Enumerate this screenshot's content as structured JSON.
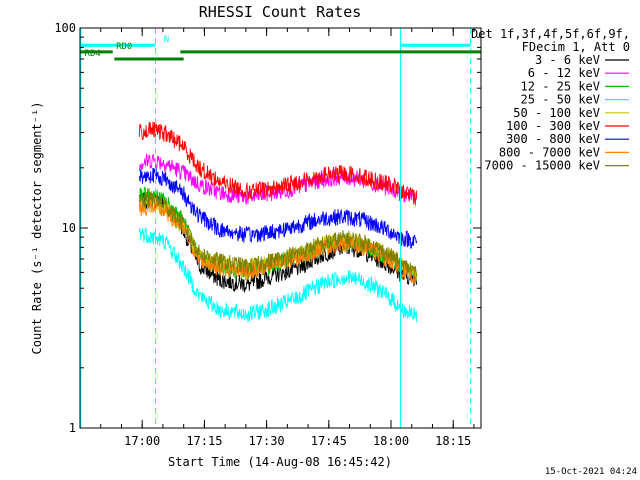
{
  "chart_data": {
    "type": "line",
    "title": "RHESSI Count Rates",
    "xlabel": "Start Time (14-Aug-08 16:45:42)",
    "ylabel": "Count Rate (s⁻¹ detector segment⁻¹)",
    "y_scale": "log",
    "ylim": [
      1,
      100
    ],
    "y_tick_labels": [
      "1",
      "10",
      "100"
    ],
    "x_range_minutes": [
      -0.7,
      96
    ],
    "x_ticks": [
      {
        "label": "17:00",
        "minutes": 14.3
      },
      {
        "label": "17:15",
        "minutes": 29.3
      },
      {
        "label": "17:30",
        "minutes": 44.3
      },
      {
        "label": "17:45",
        "minutes": 59.3
      },
      {
        "label": "18:00",
        "minutes": 74.3
      },
      {
        "label": "18:15",
        "minutes": 89.3
      }
    ],
    "legend_header": [
      "Det 1f,3f,4f,5f,6f,9f,",
      "FDecim 1, Att 0"
    ],
    "legend_position": "right",
    "series": [
      {
        "name": "3 - 6 keV",
        "color": "#000000",
        "points": [
          [
            13.6,
            13.5
          ],
          [
            17,
            14
          ],
          [
            20,
            13
          ],
          [
            24,
            10
          ],
          [
            28,
            6.5
          ],
          [
            33,
            5.5
          ],
          [
            40,
            5.2
          ],
          [
            46,
            5.8
          ],
          [
            52,
            6.3
          ],
          [
            58,
            7.4
          ],
          [
            63,
            8.0
          ],
          [
            67,
            7.8
          ],
          [
            71,
            7.0
          ],
          [
            75,
            6.3
          ],
          [
            77,
            5.8
          ],
          [
            80.5,
            5.6
          ]
        ]
      },
      {
        "name": "6 - 12 keV",
        "color": "#ff00ff",
        "points": [
          [
            13.6,
            21
          ],
          [
            17,
            22
          ],
          [
            20,
            21
          ],
          [
            24,
            19
          ],
          [
            28,
            16.5
          ],
          [
            33,
            15
          ],
          [
            40,
            14.2
          ],
          [
            46,
            15
          ],
          [
            52,
            16
          ],
          [
            58,
            17.5
          ],
          [
            63,
            18
          ],
          [
            67,
            17.5
          ],
          [
            71,
            16.5
          ],
          [
            75,
            15.5
          ],
          [
            77,
            14.8
          ],
          [
            80.5,
            14.2
          ]
        ]
      },
      {
        "name": "12 - 25 keV",
        "color": "#00c000",
        "points": [
          [
            13.6,
            14.5
          ],
          [
            17,
            14.5
          ],
          [
            20,
            13.5
          ],
          [
            24,
            11
          ],
          [
            28,
            7.2
          ],
          [
            33,
            6.4
          ],
          [
            40,
            6.0
          ],
          [
            46,
            6.6
          ],
          [
            52,
            7.2
          ],
          [
            58,
            8.2
          ],
          [
            63,
            8.6
          ],
          [
            67,
            8.2
          ],
          [
            71,
            7.6
          ],
          [
            75,
            6.9
          ],
          [
            77,
            6.2
          ],
          [
            80.5,
            5.8
          ]
        ]
      },
      {
        "name": "25 - 50 keV",
        "color": "#00ffff",
        "points": [
          [
            13.6,
            9.5
          ],
          [
            17,
            9.0
          ],
          [
            20,
            8.5
          ],
          [
            24,
            6.5
          ],
          [
            28,
            4.6
          ],
          [
            33,
            3.9
          ],
          [
            40,
            3.7
          ],
          [
            46,
            4.0
          ],
          [
            52,
            4.5
          ],
          [
            58,
            5.3
          ],
          [
            63,
            5.7
          ],
          [
            67,
            5.5
          ],
          [
            71,
            5.0
          ],
          [
            75,
            4.3
          ],
          [
            77,
            3.9
          ],
          [
            80.5,
            3.6
          ]
        ]
      },
      {
        "name": "50 - 100 keV",
        "color": "#c8c800",
        "points": [
          [
            13.6,
            13
          ],
          [
            17,
            13.3
          ],
          [
            20,
            12.5
          ],
          [
            24,
            10.3
          ],
          [
            28,
            7.3
          ],
          [
            33,
            6.6
          ],
          [
            40,
            6.3
          ],
          [
            46,
            6.8
          ],
          [
            52,
            7.4
          ],
          [
            58,
            8.3
          ],
          [
            63,
            8.8
          ],
          [
            67,
            8.4
          ],
          [
            71,
            7.8
          ],
          [
            75,
            7.0
          ],
          [
            77,
            6.4
          ],
          [
            80.5,
            6.0
          ]
        ]
      },
      {
        "name": "100 - 300 keV",
        "color": "#ff0000",
        "points": [
          [
            13.6,
            30
          ],
          [
            17,
            31
          ],
          [
            20,
            29.5
          ],
          [
            24,
            26
          ],
          [
            28,
            20
          ],
          [
            33,
            17
          ],
          [
            40,
            15.2
          ],
          [
            46,
            15.8
          ],
          [
            52,
            17
          ],
          [
            58,
            18.3
          ],
          [
            63,
            18.8
          ],
          [
            67,
            18.2
          ],
          [
            71,
            17.2
          ],
          [
            75,
            16.2
          ],
          [
            77,
            15.0
          ],
          [
            80.5,
            14.5
          ]
        ]
      },
      {
        "name": "300 - 800 keV",
        "color": "#0000ff",
        "points": [
          [
            13.6,
            18
          ],
          [
            17,
            18.5
          ],
          [
            20,
            17.5
          ],
          [
            24,
            15
          ],
          [
            28,
            11.5
          ],
          [
            33,
            9.8
          ],
          [
            40,
            9.2
          ],
          [
            46,
            9.6
          ],
          [
            52,
            10.3
          ],
          [
            58,
            11.2
          ],
          [
            63,
            11.4
          ],
          [
            67,
            11.0
          ],
          [
            71,
            10.3
          ],
          [
            75,
            9.4
          ],
          [
            77,
            8.9
          ],
          [
            80.5,
            8.6
          ]
        ]
      },
      {
        "name": "800 - 7000 keV",
        "color": "#ff8000",
        "points": [
          [
            13.6,
            12.5
          ],
          [
            17,
            12.8
          ],
          [
            20,
            12.0
          ],
          [
            24,
            10.0
          ],
          [
            28,
            7.0
          ],
          [
            33,
            6.3
          ],
          [
            40,
            6.0
          ],
          [
            46,
            6.5
          ],
          [
            52,
            7.1
          ],
          [
            58,
            8.0
          ],
          [
            63,
            8.4
          ],
          [
            67,
            8.1
          ],
          [
            71,
            7.5
          ],
          [
            75,
            6.7
          ],
          [
            77,
            6.1
          ],
          [
            80.5,
            5.7
          ]
        ]
      },
      {
        "name": "7000 - 15000 keV",
        "color": "#808000",
        "points": [
          [
            13.6,
            13.5
          ],
          [
            17,
            14
          ],
          [
            20,
            13
          ],
          [
            24,
            10.6
          ],
          [
            28,
            7.5
          ],
          [
            33,
            6.8
          ],
          [
            40,
            6.4
          ],
          [
            46,
            6.9
          ],
          [
            52,
            7.5
          ],
          [
            58,
            8.4
          ],
          [
            63,
            8.9
          ],
          [
            67,
            8.6
          ],
          [
            71,
            7.9
          ],
          [
            75,
            7.1
          ],
          [
            77,
            6.5
          ],
          [
            80.5,
            6.1
          ]
        ]
      }
    ],
    "state_bars": [
      {
        "label": "N",
        "color": "#00ffff",
        "y_value": 82,
        "segments": [
          [
            -0.7,
            17.5
          ],
          [
            76.6,
            93.5
          ]
        ],
        "label_at": 19.5
      },
      {
        "label": "RD0",
        "color": "#008000",
        "y_value": 76,
        "segments": [
          [
            -0.7,
            7.2
          ],
          [
            23.5,
            96
          ]
        ],
        "label_at": 8.0
      },
      {
        "label": "RD4",
        "color": "#008000",
        "y_value": 70,
        "segments": [
          [
            7.6,
            24.3
          ]
        ],
        "label_at": 0.4
      }
    ],
    "vertical_lines": [
      {
        "minutes": -0.5,
        "color": "#00ffff",
        "style": "solid"
      },
      {
        "minutes": 17.5,
        "color": "#00ffff",
        "style": "dashed"
      },
      {
        "minutes": 76.6,
        "color": "#00ffff",
        "style": "solid"
      },
      {
        "minutes": 93.5,
        "color": "#00ffff",
        "style": "dashed"
      }
    ],
    "timestamp": "15-Oct-2021 04:24",
    "grid": false
  }
}
